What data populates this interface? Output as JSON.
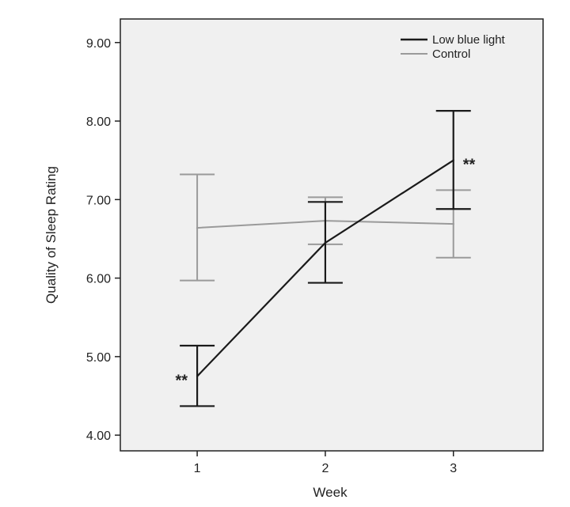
{
  "chart_data": {
    "type": "line",
    "title": "",
    "xlabel": "Week",
    "ylabel": "Quality of Sleep Rating",
    "x": [
      1,
      2,
      3
    ],
    "x_tick_labels": [
      "1",
      "2",
      "3"
    ],
    "xlim": [
      0.4,
      3.7
    ],
    "ylim": [
      3.8,
      9.3
    ],
    "y_ticks": [
      4.0,
      5.0,
      6.0,
      7.0,
      8.0,
      9.0
    ],
    "y_tick_labels": [
      "4.00",
      "5.00",
      "6.00",
      "7.00",
      "8.00",
      "9.00"
    ],
    "grid": false,
    "legend_position": "top-right",
    "series": [
      {
        "name": "Low blue light",
        "color": "#1a1a1a",
        "values": [
          4.75,
          6.45,
          7.5
        ],
        "error_low": [
          4.37,
          5.94,
          6.88
        ],
        "error_high": [
          5.14,
          6.97,
          8.13
        ]
      },
      {
        "name": "Control",
        "color": "#9a9a9a",
        "values": [
          6.64,
          6.73,
          6.69
        ],
        "error_low": [
          5.97,
          6.43,
          6.26
        ],
        "error_high": [
          7.32,
          7.03,
          7.12
        ]
      }
    ],
    "annotations": [
      {
        "text": "**",
        "x": 1,
        "y": 4.75,
        "placement": "left"
      },
      {
        "text": "**",
        "x": 3,
        "y": 7.5,
        "placement": "right"
      }
    ]
  }
}
